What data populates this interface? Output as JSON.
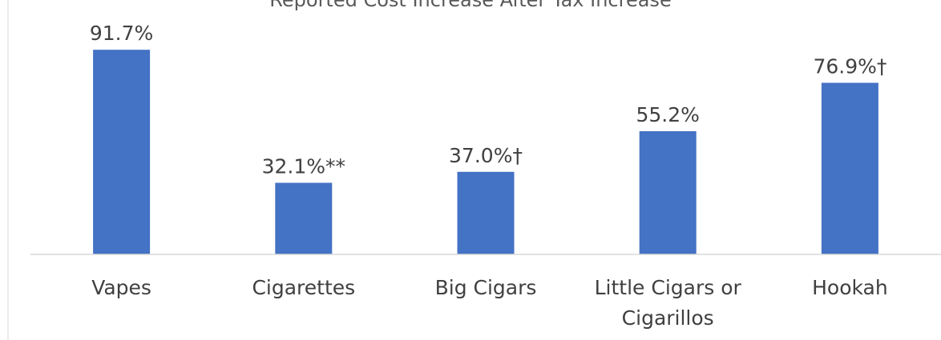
{
  "chart_data": {
    "type": "bar",
    "title": "Reported Cost Increase After Tax Increase",
    "categories": [
      [
        "Vapes"
      ],
      [
        "Cigarettes"
      ],
      [
        "Big Cigars"
      ],
      [
        "Little Cigars or",
        "Cigarillos"
      ],
      [
        "Hookah"
      ]
    ],
    "values": [
      91.7,
      32.1,
      37.0,
      55.2,
      76.9
    ],
    "data_labels": [
      "91.7%",
      "32.1%**",
      "37.0%†",
      "55.2%",
      "76.9%†"
    ],
    "ylim": [
      0,
      100
    ],
    "grid": false,
    "bar_color": "#4472C4",
    "axis_color": "#D9D9D9"
  }
}
